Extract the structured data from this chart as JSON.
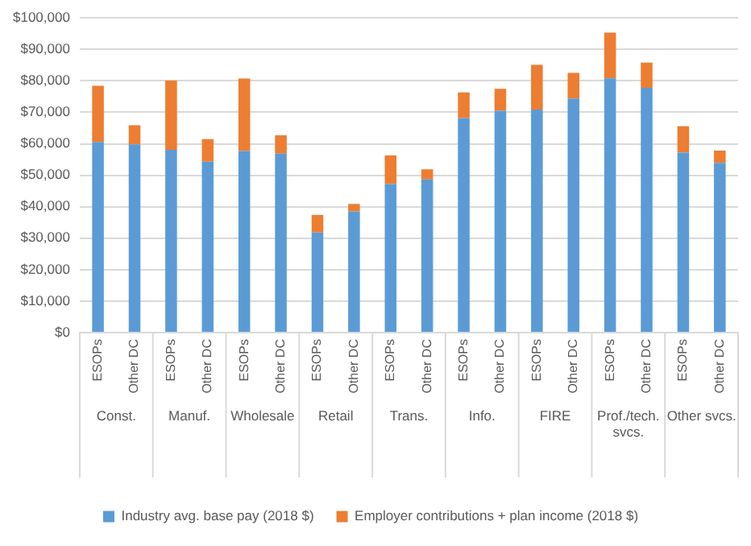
{
  "chart_data": {
    "type": "bar",
    "stacked": true,
    "grid": "y",
    "legend": "bottom",
    "categories": [
      "ESOPs",
      "Other DC",
      "ESOPs",
      "Other DC",
      "ESOPs",
      "Other DC",
      "ESOPs",
      "Other DC",
      "ESOPs",
      "Other DC",
      "ESOPs",
      "Other DC",
      "ESOPs",
      "Other DC",
      "ESOPs",
      "Other DC",
      "ESOPs",
      "Other DC"
    ],
    "annotations": [
      "Const.",
      "Manuf.",
      "Wholesale",
      "Retail",
      "Trans.",
      "Info.",
      "FIRE",
      "Prof./tech. svcs.",
      "Other svcs."
    ],
    "series": [
      {
        "name": "Industry avg. base pay (2018 $)",
        "color": "#5b9bd5",
        "values": [
          60600,
          59800,
          58100,
          54300,
          57700,
          56900,
          31800,
          38500,
          47200,
          48700,
          68200,
          70500,
          70900,
          74400,
          80800,
          77800,
          57200,
          53900
        ]
      },
      {
        "name": "Employer contributions + plan income (2018 $)",
        "color": "#ed7d31",
        "values": [
          17800,
          6100,
          22000,
          7200,
          23000,
          5800,
          5600,
          2400,
          9100,
          3200,
          8100,
          7000,
          14200,
          8100,
          14500,
          8000,
          8400,
          3900
        ]
      }
    ],
    "ylim": [
      0,
      100000
    ],
    "yticks": [
      {
        "value": 0,
        "label": "$0"
      },
      {
        "value": 10000,
        "label": "$10,000"
      },
      {
        "value": 20000,
        "label": "$20,000"
      },
      {
        "value": 30000,
        "label": "$30,000"
      },
      {
        "value": 40000,
        "label": "$40,000"
      },
      {
        "value": 50000,
        "label": "$50,000"
      },
      {
        "value": 60000,
        "label": "$60,000"
      },
      {
        "value": 70000,
        "label": "$70,000"
      },
      {
        "value": 80000,
        "label": "$80,000"
      },
      {
        "value": 90000,
        "label": "$90,000"
      },
      {
        "value": 100000,
        "label": "$100,000"
      }
    ]
  }
}
